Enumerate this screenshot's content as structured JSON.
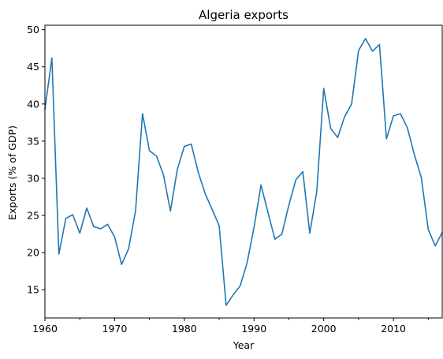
{
  "chart_data": {
    "type": "line",
    "title": "Algeria exports",
    "xlabel": "Year",
    "ylabel": "Exports  (% of GDP)",
    "xlim": [
      1960,
      2017
    ],
    "ylim": [
      11.2,
      50.6
    ],
    "xticks_major": [
      1960,
      1970,
      1980,
      1990,
      2000,
      2010
    ],
    "xticks_minor": [
      1965,
      1975,
      1985,
      1995,
      2005,
      2015
    ],
    "yticks": [
      15,
      20,
      25,
      30,
      35,
      40,
      45,
      50
    ],
    "grid": false,
    "legend": "none",
    "series": [
      {
        "color": "#1f77b4",
        "x": [
          1960,
          1961,
          1962,
          1963,
          1964,
          1965,
          1966,
          1967,
          1968,
          1969,
          1970,
          1971,
          1972,
          1973,
          1974,
          1975,
          1976,
          1977,
          1978,
          1979,
          1980,
          1981,
          1982,
          1983,
          1984,
          1985,
          1986,
          1987,
          1988,
          1989,
          1990,
          1991,
          1992,
          1993,
          1994,
          1995,
          1996,
          1997,
          1998,
          1999,
          2000,
          2001,
          2002,
          2003,
          2004,
          2005,
          2006,
          2007,
          2008,
          2009,
          2010,
          2011,
          2012,
          2013,
          2014,
          2015,
          2016,
          2017
        ],
        "values": [
          39.3,
          46.2,
          19.8,
          24.6,
          25.1,
          22.6,
          26.0,
          23.5,
          23.2,
          23.8,
          22.1,
          18.4,
          20.5,
          25.6,
          38.7,
          33.7,
          33.0,
          30.5,
          25.6,
          31.2,
          34.3,
          34.6,
          30.8,
          27.9,
          25.8,
          23.6,
          12.9,
          14.3,
          15.5,
          18.6,
          23.4,
          29.1,
          25.4,
          21.8,
          22.5,
          26.4,
          29.8,
          30.9,
          22.6,
          28.2,
          42.1,
          36.7,
          35.5,
          38.3,
          40.0,
          47.2,
          48.8,
          47.1,
          48.0,
          35.3,
          38.4,
          38.7,
          36.8,
          33.2,
          30.1,
          23.1,
          20.9,
          22.7
        ]
      }
    ]
  }
}
